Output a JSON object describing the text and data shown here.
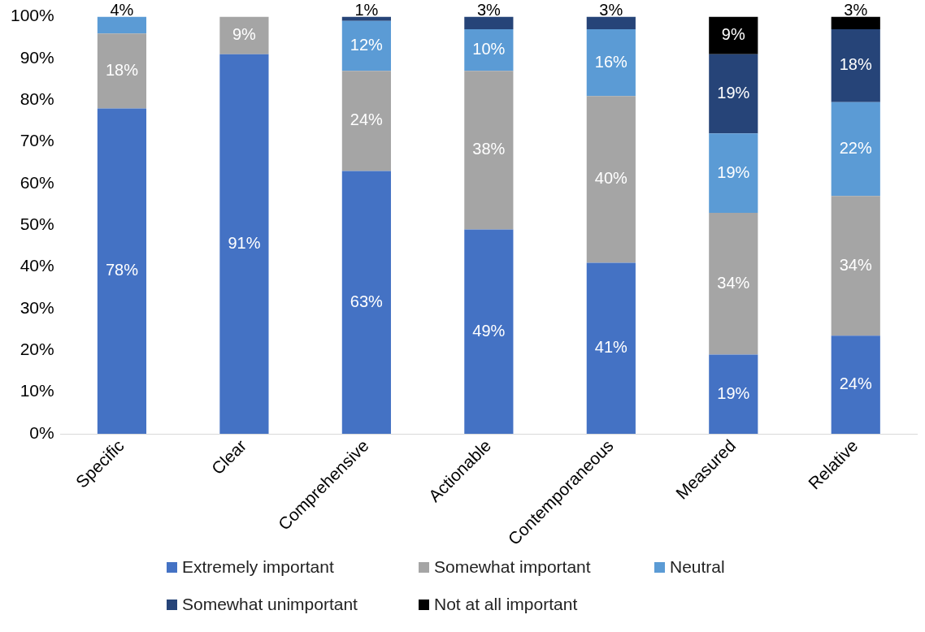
{
  "chart_data": {
    "type": "bar",
    "stacked": true,
    "categories": [
      "Specific",
      "Clear",
      "Comprehensive",
      "Actionable",
      "Contemporaneous",
      "Measured",
      "Relative"
    ],
    "series": [
      {
        "name": "Extremely important",
        "color": "#4472c4",
        "values": [
          78,
          91,
          63,
          49,
          41,
          19,
          23.5
        ],
        "value_labels": [
          "78%",
          "91%",
          "63%",
          "49%",
          "41%",
          "19%",
          "24%"
        ]
      },
      {
        "name": "Somewhat important",
        "color": "#a5a5a5",
        "values": [
          18,
          9,
          24,
          38,
          40,
          34,
          33.5
        ],
        "value_labels": [
          "18%",
          "9%",
          "24%",
          "38%",
          "40%",
          "34%",
          "34%"
        ]
      },
      {
        "name": "Neutral",
        "color": "#5b9bd5",
        "values": [
          4,
          null,
          12,
          10,
          16,
          19,
          22.5
        ],
        "value_labels": [
          "4%",
          null,
          "12%",
          "10%",
          "16%",
          "19%",
          "22%"
        ]
      },
      {
        "name": "Somewhat unimportant",
        "color": "#264478",
        "values": [
          null,
          null,
          1,
          3,
          3,
          19,
          17.5
        ],
        "value_labels": [
          null,
          null,
          "1%",
          "3%",
          "3%",
          "19%",
          "18%"
        ]
      },
      {
        "name": "Not at all important",
        "color": "#000000",
        "values": [
          null,
          null,
          null,
          null,
          null,
          9,
          3
        ],
        "value_labels": [
          null,
          null,
          null,
          null,
          null,
          "9%",
          "3%"
        ]
      }
    ],
    "ylim": [
      0,
      100
    ],
    "yticks": [
      {
        "value": 0,
        "label": "0%"
      },
      {
        "value": 10,
        "label": "10%"
      },
      {
        "value": 20,
        "label": "20%"
      },
      {
        "value": 30,
        "label": "30%"
      },
      {
        "value": 40,
        "label": "40%"
      },
      {
        "value": 50,
        "label": "50%"
      },
      {
        "value": 60,
        "label": "60%"
      },
      {
        "value": 70,
        "label": "70%"
      },
      {
        "value": 80,
        "label": "80%"
      },
      {
        "value": 90,
        "label": "90%"
      },
      {
        "value": 100,
        "label": "100%"
      }
    ],
    "grid": false,
    "legend": "bottom"
  }
}
